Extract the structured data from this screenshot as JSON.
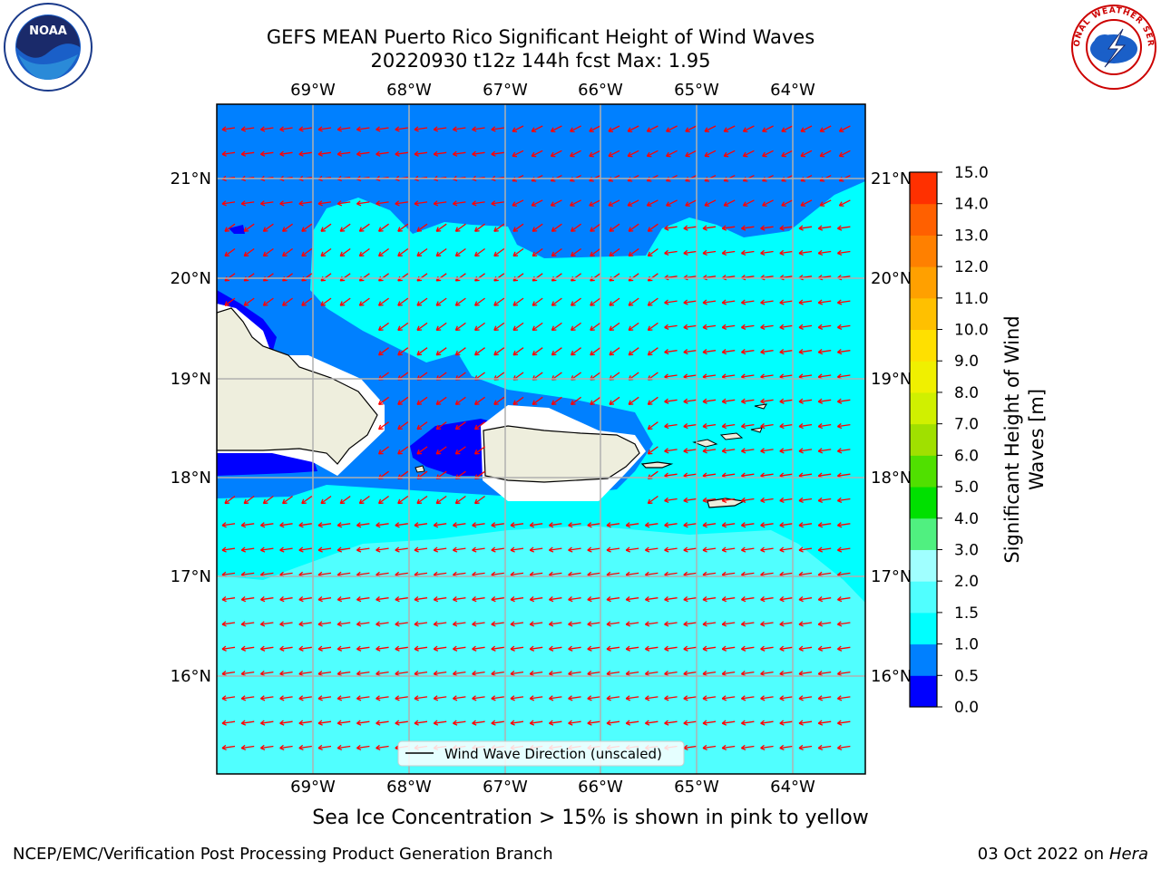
{
  "title_line1": "GEFS MEAN Puerto Rico Significant Height of Wind Waves",
  "title_line2": "20220930 t12z 144h fcst   Max: 1.95",
  "sea_ice_note": "Sea Ice Concentration > 15% is shown in pink to yellow",
  "footer_left": "NCEP/EMC/Verification Post Processing Product Generation Branch",
  "footer_date": "03 Oct 2022 on ",
  "footer_host": "Hera",
  "legend_label": "Wind Wave Direction (unscaled)",
  "colorbar": {
    "label_line1": "Significant Height of Wind",
    "label_line2": "Waves [m]",
    "ticks": [
      "0.0",
      "0.5",
      "1.0",
      "1.5",
      "2.0",
      "3.0",
      "4.0",
      "5.0",
      "6.0",
      "7.0",
      "8.0",
      "9.0",
      "10.0",
      "11.0",
      "12.0",
      "13.0",
      "14.0",
      "15.0"
    ],
    "colors": [
      "#0000ff",
      "#0080ff",
      "#00ffff",
      "#50ffff",
      "#a0ffff",
      "#50f080",
      "#00e000",
      "#50e000",
      "#a0e000",
      "#d0f000",
      "#f0f000",
      "#ffe000",
      "#ffc000",
      "#ffa000",
      "#ff8000",
      "#ff6000",
      "#ff3000"
    ]
  },
  "map": {
    "lon_labels": [
      "69°W",
      "68°W",
      "67°W",
      "66°W",
      "65°W",
      "64°W"
    ],
    "lat_labels": [
      "21°N",
      "20°N",
      "19°N",
      "18°N",
      "17°N",
      "16°N"
    ],
    "colors": {
      "ocean_deep": "#0080ff",
      "ocean_mid": "#00ffff",
      "ocean_light": "#50ffff",
      "ocean_low": "#0000ff",
      "land": "#eeeedd",
      "arrow": "#ff0000",
      "grid": "#b0b0b0"
    }
  },
  "logos": {
    "noaa": "NOAA",
    "nws": "NATIONAL WEATHER SERVICE"
  }
}
